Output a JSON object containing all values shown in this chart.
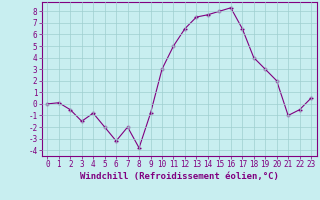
{
  "x": [
    0,
    1,
    2,
    3,
    4,
    5,
    6,
    7,
    8,
    9,
    10,
    11,
    12,
    13,
    14,
    15,
    16,
    17,
    18,
    19,
    20,
    21,
    22,
    23
  ],
  "y": [
    0.0,
    0.1,
    -0.5,
    -1.5,
    -0.8,
    -2.0,
    -3.2,
    -2.0,
    -3.8,
    -0.8,
    3.0,
    5.0,
    6.5,
    7.5,
    7.7,
    8.0,
    8.3,
    6.5,
    4.0,
    3.0,
    2.0,
    -1.0,
    -0.5,
    0.5
  ],
  "line_color": "#800080",
  "marker_color": "#800080",
  "bg_color": "#c8eef0",
  "grid_color": "#9fcfcf",
  "xlabel": "Windchill (Refroidissement éolien,°C)",
  "ylim": [
    -4.5,
    8.8
  ],
  "xlim": [
    -0.5,
    23.5
  ],
  "xticks": [
    0,
    1,
    2,
    3,
    4,
    5,
    6,
    7,
    8,
    9,
    10,
    11,
    12,
    13,
    14,
    15,
    16,
    17,
    18,
    19,
    20,
    21,
    22,
    23
  ],
  "yticks": [
    -4,
    -3,
    -2,
    -1,
    0,
    1,
    2,
    3,
    4,
    5,
    6,
    7,
    8
  ],
  "tick_label_fontsize": 5.5,
  "xlabel_fontsize": 6.5,
  "axis_color": "#800080"
}
